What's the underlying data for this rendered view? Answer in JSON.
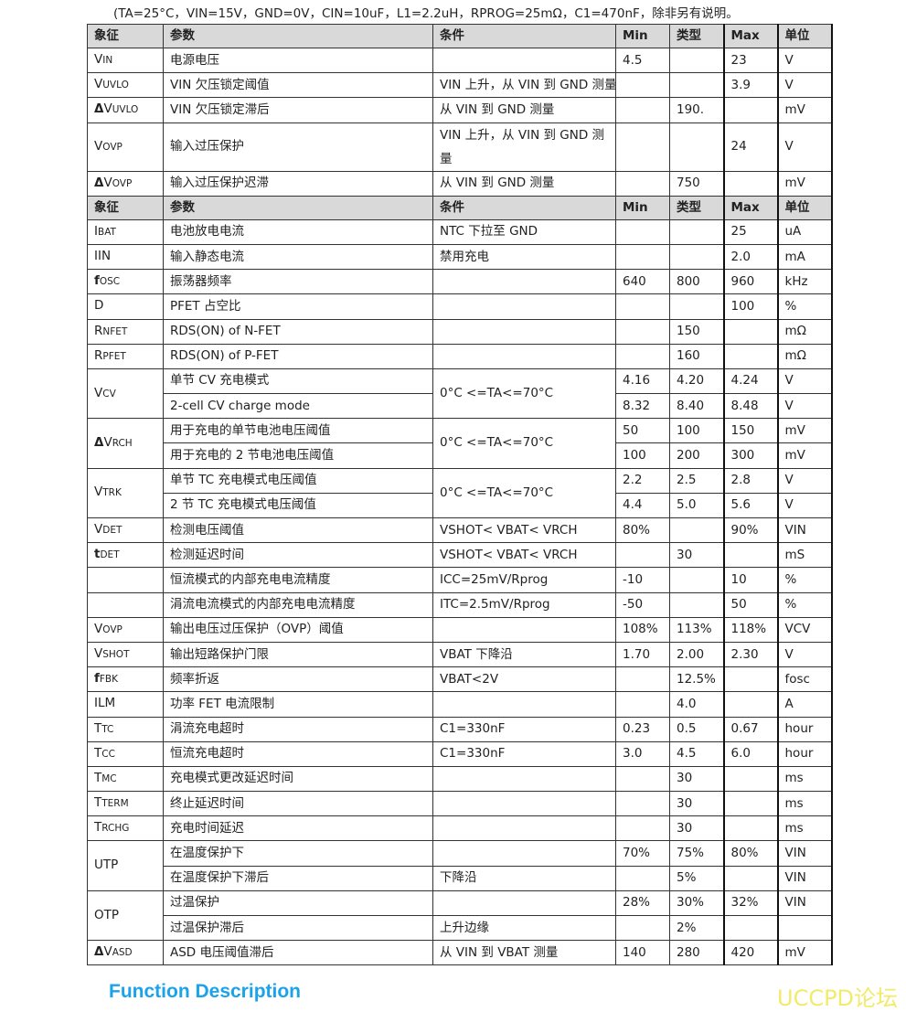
{
  "note": "(TA=25°C，VIN=15V，GND=0V，CIN=10uF，L1=2.2uH，RPROG=25mΩ，C1=470nF，除非另有说明。",
  "header": [
    "象征",
    "参数",
    "条件",
    "Min",
    "类型",
    "Max",
    "单位"
  ],
  "rows": [
    {
      "type": "header"
    },
    {
      "sym": "V",
      "sub": "IN",
      "param": "电源电压",
      "cond": "",
      "min": "4.5",
      "typ": "",
      "max": "23",
      "unit": "V"
    },
    {
      "sym": "V",
      "sub": "UVLO",
      "param": "VIN 欠压锁定阈值",
      "cond": "VIN 上升，从 VIN 到 GND 测量",
      "min": "",
      "typ": "",
      "max": "3.9",
      "unit": "V"
    },
    {
      "pre": "Δ",
      "sym": "V",
      "sub": "UVLO",
      "param": "VIN  欠压锁定滞后",
      "cond": "从  VIN  到  GND  测量",
      "min": "",
      "typ": "190.",
      "max": "",
      "unit": "mV"
    },
    {
      "sym": "V",
      "sub": "OVP",
      "param": "输入过压保护",
      "cond": "VIN 上升，从 VIN 到 GND 测量",
      "wrap": true,
      "min": "",
      "typ": "",
      "max": "24",
      "unit": "V"
    },
    {
      "pre": "Δ",
      "sym": "V",
      "sub": "OVP",
      "param": "输入过压保护迟滞",
      "cond": "从  VIN  到  GND  测量",
      "min": "",
      "typ": "750",
      "max": "",
      "unit": "mV"
    },
    {
      "type": "header"
    },
    {
      "sym": "I",
      "sub": "BAT",
      "param": "电池放电电流",
      "cond": "NTC  下拉至  GND",
      "min": "",
      "typ": "",
      "max": "25",
      "unit": "uA"
    },
    {
      "sym": "IIN",
      "sub": "",
      "param": "输入静态电流",
      "cond": "禁用充电",
      "min": "",
      "typ": "",
      "max": "2.0",
      "unit": "mA"
    },
    {
      "pre": "f",
      "sym": "",
      "sub": "OSC",
      "param": "振荡器频率",
      "cond": "",
      "min": "640",
      "typ": "800",
      "max": "960",
      "unit": "kHz"
    },
    {
      "sym": "D",
      "sub": "",
      "param": "PFET 占空比",
      "cond": "",
      "min": "",
      "typ": "",
      "max": "100",
      "unit": "%"
    },
    {
      "sym": "R",
      "sub": "NFET",
      "param": "RDS(ON) of N-FET",
      "cond": "",
      "min": "",
      "typ": "150",
      "max": "",
      "unit": "mΩ"
    },
    {
      "sym": "R",
      "sub": "PFET",
      "param": "RDS(ON) of P-FET",
      "cond": "",
      "min": "",
      "typ": "160",
      "max": "",
      "unit": "mΩ"
    },
    {
      "sym": "V",
      "sub": "CV",
      "span": 2,
      "param": "单节 CV 充电模式",
      "cond": "0°C <=TA<=70°C",
      "cspan": 2,
      "min": "4.16",
      "typ": "4.20",
      "max": "4.24",
      "unit": "V"
    },
    {
      "cont": true,
      "param": "2-cell CV charge mode",
      "min": "8.32",
      "typ": "8.40",
      "max": "8.48",
      "unit": "V"
    },
    {
      "pre": "Δ",
      "sym": "V",
      "sub": "RCH",
      "span": 2,
      "param": "用于充电的单节电池电压阈值",
      "cond": "0°C <=TA<=70°C",
      "cspan": 2,
      "min": "50",
      "typ": "100",
      "max": "150",
      "unit": "mV"
    },
    {
      "cont": true,
      "param": "用于充电的  2  节电池电压阈值",
      "min": "100",
      "typ": "200",
      "max": "300",
      "unit": "mV"
    },
    {
      "sym": "V",
      "sub": "TRK",
      "span": 2,
      "param": "单节  TC  充电模式电压阈值",
      "cond": "0°C <=TA<=70°C",
      "cspan": 2,
      "min": "2.2",
      "typ": "2.5",
      "max": "2.8",
      "unit": "V"
    },
    {
      "cont": true,
      "param": "2 节 TC 充电模式电压阈值",
      "min": "4.4",
      "typ": "5.0",
      "max": "5.6",
      "unit": "V"
    },
    {
      "sym": "V",
      "sub": "DET",
      "param": "检测电压阈值",
      "cond": "VSHOT< VBAT< VRCH",
      "min": "80%",
      "typ": "",
      "max": "90%",
      "unit": "VIN"
    },
    {
      "pre": "t",
      "sym": "",
      "sub": "DET",
      "param": "检测延迟时间",
      "cond": "VSHOT< VBAT< VRCH",
      "min": "",
      "typ": "30",
      "max": "",
      "unit": "mS"
    },
    {
      "sym": "",
      "sub": "",
      "param": "恒流模式的内部充电电流精度",
      "cond": "ICC=25mV/Rprog",
      "min": "-10",
      "typ": "",
      "max": "10",
      "unit": "%"
    },
    {
      "sym": "",
      "sub": "",
      "param": "涓流电流模式的内部充电电流精度",
      "cond": "ITC=2.5mV/Rprog",
      "min": "-50",
      "typ": "",
      "max": "50",
      "unit": "%"
    },
    {
      "sym": "V",
      "sub": "OVP",
      "param": "输出电压过压保护（OVP）阈值",
      "cond": "",
      "min": "108%",
      "typ": "113%",
      "max": "118%",
      "unit": "VCV"
    },
    {
      "sym": "V",
      "sub": "SHOT",
      "param": "输出短路保护门限",
      "cond": "VBAT 下降沿",
      "min": "1.70",
      "typ": "2.00",
      "max": "2.30",
      "unit": "V"
    },
    {
      "pre": "f",
      "sym": "",
      "sub": "FBK",
      "param": "频率折返",
      "cond": "VBAT<2V",
      "min": "",
      "typ": "12.5%",
      "max": "",
      "unit": "fosc"
    },
    {
      "sym": "ILM",
      "sub": "",
      "param": "功率  FET  电流限制",
      "cond": "",
      "min": "",
      "typ": "4.0",
      "max": "",
      "unit": "A"
    },
    {
      "sym": "T",
      "sub": "TC",
      "param": "涓流充电超时",
      "cond": "C1=330nF",
      "min": "0.23",
      "typ": "0.5",
      "max": "0.67",
      "unit": "hour"
    },
    {
      "sym": "T",
      "sub": "CC",
      "param": "恒流充电超时",
      "cond": "C1=330nF",
      "min": "3.0",
      "typ": "4.5",
      "max": "6.0",
      "unit": "hour"
    },
    {
      "sym": "T",
      "sub": "MC",
      "param": "充电模式更改延迟时间",
      "cond": "",
      "min": "",
      "typ": "30",
      "max": "",
      "unit": "ms"
    },
    {
      "sym": "T",
      "sub": "TERM",
      "param": "终止延迟时间",
      "cond": "",
      "min": "",
      "typ": "30",
      "max": "",
      "unit": "ms"
    },
    {
      "sym": "T",
      "sub": "RCHG",
      "param": "充电时间延迟",
      "cond": "",
      "min": "",
      "typ": "30",
      "max": "",
      "unit": "ms"
    },
    {
      "sym": "UTP",
      "sub": "",
      "span": 2,
      "param": "在温度保护下",
      "cond": "",
      "min": "70%",
      "typ": "75%",
      "max": "80%",
      "unit": "VIN"
    },
    {
      "cont": true,
      "param": "在温度保护下滞后",
      "cond": "下降沿",
      "min": "",
      "typ": "5%",
      "max": "",
      "unit": "VIN"
    },
    {
      "sym": "OTP",
      "sub": "",
      "span": 2,
      "param": "过温保护",
      "cond": "",
      "min": "28%",
      "typ": "30%",
      "max": "32%",
      "unit": "VIN"
    },
    {
      "cont": true,
      "param": "过温保护滞后",
      "cond": "上升边缘",
      "min": "",
      "typ": "2%",
      "max": "",
      "unit": ""
    },
    {
      "pre": "Δ",
      "sym": "V",
      "sub": "ASD",
      "param": "ASD  电压阈值滞后",
      "cond": "从  VIN  到  VBAT  测量",
      "min": "140",
      "typ": "280",
      "max": "420",
      "unit": "mV"
    }
  ],
  "section_title": "Function Description",
  "watermark": "UCCPD论坛"
}
